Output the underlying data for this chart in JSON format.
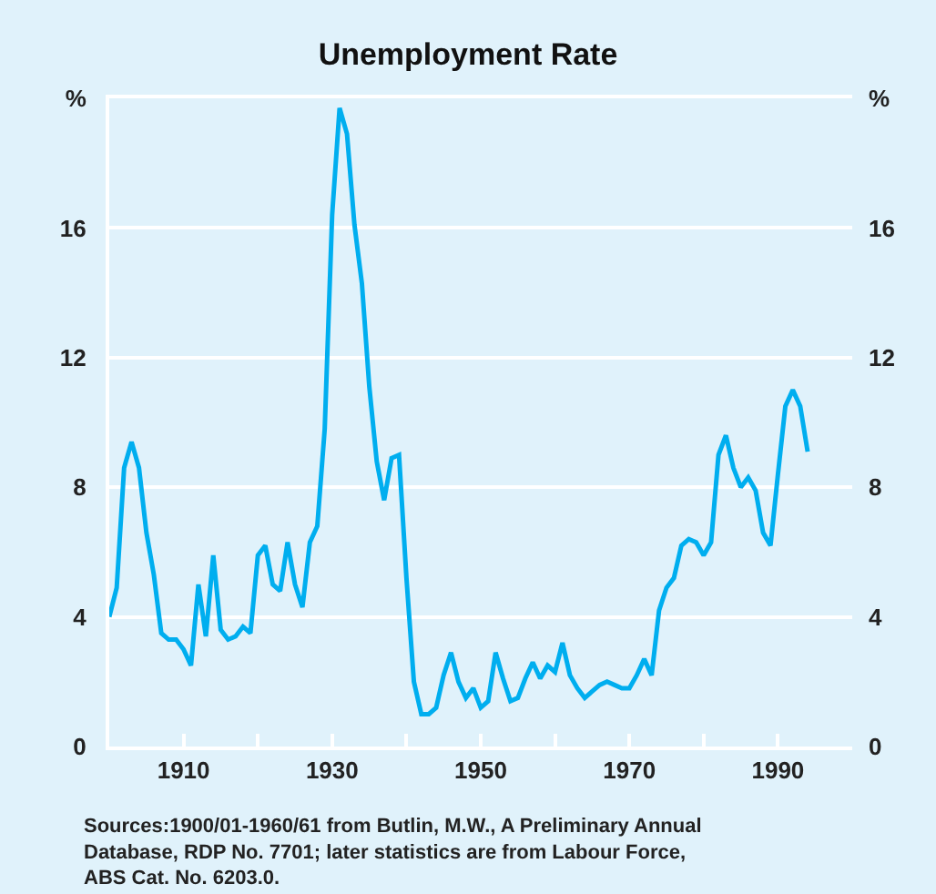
{
  "chart_data": {
    "type": "line",
    "title": "Unemployment Rate",
    "x": [
      1900,
      1901,
      1902,
      1903,
      1904,
      1905,
      1906,
      1907,
      1908,
      1909,
      1910,
      1911,
      1912,
      1913,
      1914,
      1915,
      1916,
      1917,
      1918,
      1919,
      1920,
      1921,
      1922,
      1923,
      1924,
      1925,
      1926,
      1927,
      1928,
      1929,
      1930,
      1931,
      1932,
      1933,
      1934,
      1935,
      1936,
      1937,
      1938,
      1939,
      1940,
      1941,
      1942,
      1943,
      1944,
      1945,
      1946,
      1947,
      1948,
      1949,
      1950,
      1951,
      1952,
      1953,
      1954,
      1955,
      1956,
      1957,
      1958,
      1959,
      1960,
      1961,
      1962,
      1963,
      1964,
      1965,
      1966,
      1967,
      1968,
      1969,
      1970,
      1971,
      1972,
      1973,
      1974,
      1975,
      1976,
      1977,
      1978,
      1979,
      1980,
      1981,
      1982,
      1983,
      1984,
      1985,
      1986,
      1987,
      1988,
      1989,
      1990,
      1991,
      1992,
      1993,
      1994
    ],
    "series": [
      {
        "color": "#00aeef",
        "values": [
          4.0,
          4.9,
          8.6,
          9.4,
          8.6,
          6.6,
          5.3,
          3.5,
          3.3,
          3.3,
          3.0,
          2.5,
          5.0,
          3.4,
          5.9,
          3.6,
          3.3,
          3.4,
          3.7,
          3.5,
          5.9,
          6.2,
          5.0,
          4.8,
          6.3,
          5.0,
          4.3,
          6.3,
          6.8,
          9.8,
          16.4,
          19.7,
          18.9,
          16.1,
          14.3,
          11.1,
          8.8,
          7.6,
          8.9,
          9.0,
          5.2,
          2.0,
          1.0,
          1.0,
          1.2,
          2.2,
          2.9,
          2.0,
          1.5,
          1.8,
          1.2,
          1.4,
          2.9,
          2.1,
          1.4,
          1.5,
          2.1,
          2.6,
          2.1,
          2.5,
          2.3,
          3.2,
          2.2,
          1.8,
          1.5,
          1.7,
          1.9,
          2.0,
          1.9,
          1.8,
          1.8,
          2.2,
          2.7,
          2.2,
          4.2,
          4.9,
          5.2,
          6.2,
          6.4,
          6.3,
          5.9,
          6.3,
          9.0,
          9.6,
          8.6,
          8.0,
          8.3,
          7.9,
          6.6,
          6.2,
          8.4,
          10.5,
          11.0,
          10.5,
          9.1
        ]
      }
    ],
    "xlim": [
      1900,
      2000
    ],
    "xticks": [
      {
        "value": 1910,
        "label": "1910"
      },
      {
        "value": 1920,
        "label": null
      },
      {
        "value": 1930,
        "label": "1930"
      },
      {
        "value": 1940,
        "label": null
      },
      {
        "value": 1950,
        "label": "1950"
      },
      {
        "value": 1960,
        "label": null
      },
      {
        "value": 1970,
        "label": "1970"
      },
      {
        "value": 1980,
        "label": null
      },
      {
        "value": 1990,
        "label": "1990"
      }
    ],
    "ylim": [
      0,
      20
    ],
    "yticks": [
      0,
      4,
      8,
      12,
      16,
      {
        "value": 20,
        "label": "%"
      }
    ],
    "y2lim": [
      0,
      20
    ],
    "y2ticks": [
      0,
      4,
      8,
      12,
      16,
      {
        "value": 20,
        "label": "%"
      }
    ],
    "grid": "y",
    "annotations": [
      "Sources:1900/01-1960/61 from Butlin, M.W., A Preliminary Annual Database, RDP No. 7701; later statistics are from Labour Force, ABS Cat. No. 6203.0."
    ]
  }
}
